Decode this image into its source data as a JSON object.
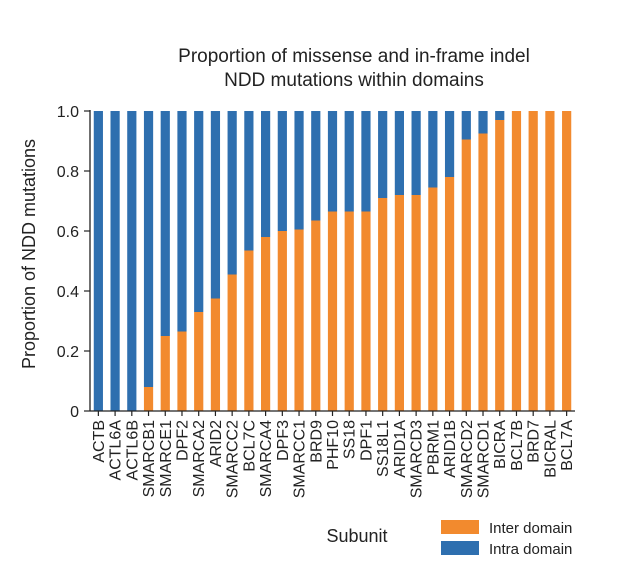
{
  "chart_data": {
    "type": "bar",
    "stacked": true,
    "title": [
      "Proportion of missense and in-frame indel",
      "NDD mutations within domains"
    ],
    "xlabel": "Subunit",
    "ylabel": "Proportion of NDD mutations",
    "ylim": [
      0,
      1.0
    ],
    "yticks": [
      "0",
      "0.2",
      "0.4",
      "0.6",
      "0.8",
      "1.0"
    ],
    "grid": false,
    "legend_position": "bottom-right",
    "categories": [
      "ACTB",
      "ACTL6A",
      "ACTL6B",
      "SMARCB1",
      "SMARCE1",
      "DPF2",
      "SMARCA2",
      "ARID2",
      "SMARCC2",
      "BCL7C",
      "SMARCA4",
      "DPF3",
      "SMARCC1",
      "BRD9",
      "PHF10",
      "SS18",
      "DPF1",
      "SS18L1",
      "ARID1A",
      "SMARCD3",
      "PBRM1",
      "ARID1B",
      "SMARCD2",
      "SMARCD1",
      "BICRA",
      "BCL7B",
      "BRD7",
      "BICRAL",
      "BCL7A"
    ],
    "series": [
      {
        "name": "Inter domain",
        "color": "#F28A2E",
        "values": [
          0,
          0,
          0,
          0.08,
          0.25,
          0.265,
          0.33,
          0.375,
          0.455,
          0.535,
          0.58,
          0.6,
          0.605,
          0.635,
          0.665,
          0.665,
          0.665,
          0.71,
          0.72,
          0.72,
          0.745,
          0.78,
          0.905,
          0.925,
          0.97,
          1.0,
          1.0,
          1.0,
          1.0
        ]
      },
      {
        "name": "Intra domain",
        "color": "#2E6FAF",
        "values": [
          1.0,
          1.0,
          1.0,
          0.92,
          0.75,
          0.735,
          0.67,
          0.625,
          0.545,
          0.465,
          0.42,
          0.4,
          0.395,
          0.365,
          0.335,
          0.335,
          0.335,
          0.29,
          0.28,
          0.28,
          0.255,
          0.22,
          0.095,
          0.075,
          0.03,
          0,
          0,
          0,
          0
        ]
      }
    ]
  }
}
